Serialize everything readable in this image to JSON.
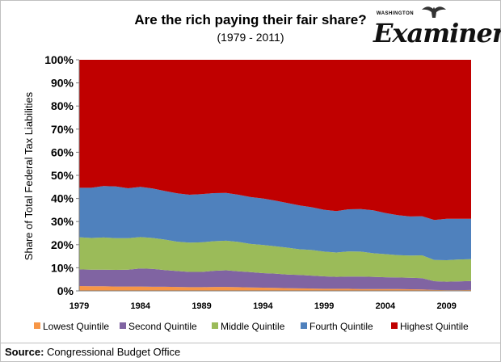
{
  "title": "Are the rich paying their fair share?",
  "subtitle": "(1979 - 2011)",
  "logo": {
    "top_text": "WASHINGTON",
    "word": "Examiner"
  },
  "source_label": "Source:",
  "source_text": "Congressional Budget Office",
  "chart_data": {
    "type": "area",
    "stacked": true,
    "title": "Are the rich paying their fair share?",
    "subtitle": "(1979 - 2011)",
    "ylabel": "Share of Total Federal Tax Liabilities",
    "xlabel": "",
    "ylim": [
      0,
      100
    ],
    "yticks": [
      "0%",
      "10%",
      "20%",
      "30%",
      "40%",
      "50%",
      "60%",
      "70%",
      "80%",
      "90%",
      "100%"
    ],
    "xticks": [
      "1979",
      "1984",
      "1989",
      "1994",
      "1999",
      "2004",
      "2009"
    ],
    "grid": false,
    "legend": "bottom",
    "x": [
      1979,
      1980,
      1981,
      1982,
      1983,
      1984,
      1985,
      1986,
      1987,
      1988,
      1989,
      1990,
      1991,
      1992,
      1993,
      1994,
      1995,
      1996,
      1997,
      1998,
      1999,
      2000,
      2001,
      2002,
      2003,
      2004,
      2005,
      2006,
      2007,
      2008,
      2009,
      2010,
      2011
    ],
    "series": [
      {
        "name": "Lowest Quintile",
        "color": "#f79646",
        "values": [
          2.1,
          2.0,
          2.0,
          1.9,
          1.9,
          1.9,
          1.8,
          1.8,
          1.7,
          1.6,
          1.6,
          1.7,
          1.7,
          1.6,
          1.5,
          1.4,
          1.3,
          1.2,
          1.1,
          1.0,
          0.9,
          0.9,
          0.9,
          0.8,
          0.8,
          0.8,
          0.8,
          0.7,
          0.6,
          0.4,
          0.3,
          0.3,
          0.4
        ]
      },
      {
        "name": "Second Quintile",
        "color": "#8064a2",
        "values": [
          7.2,
          7.2,
          7.2,
          7.2,
          7.3,
          7.8,
          7.7,
          7.2,
          6.9,
          6.6,
          6.6,
          7.0,
          7.2,
          6.9,
          6.6,
          6.3,
          6.2,
          5.9,
          5.8,
          5.6,
          5.4,
          5.2,
          5.3,
          5.4,
          5.3,
          5.1,
          5.0,
          5.0,
          4.9,
          3.8,
          3.7,
          3.8,
          3.9
        ]
      },
      {
        "name": "Middle Quintile",
        "color": "#9bbb59",
        "values": [
          13.9,
          13.7,
          13.9,
          13.7,
          13.6,
          13.6,
          13.4,
          13.2,
          12.7,
          12.7,
          12.8,
          12.8,
          12.8,
          12.7,
          12.2,
          12.2,
          11.8,
          11.6,
          11.1,
          11.1,
          10.7,
          10.5,
          10.9,
          10.8,
          10.2,
          10.0,
          9.7,
          9.6,
          9.9,
          9.2,
          9.3,
          9.5,
          9.4
        ]
      },
      {
        "name": "Fourth Quintile",
        "color": "#4f81bd",
        "values": [
          21.4,
          21.7,
          22.3,
          22.4,
          21.6,
          21.7,
          21.4,
          21.0,
          20.9,
          20.7,
          20.9,
          20.8,
          20.7,
          20.4,
          20.3,
          20.1,
          19.8,
          19.3,
          19.0,
          18.5,
          18.1,
          17.9,
          18.2,
          18.4,
          18.6,
          17.8,
          17.3,
          16.9,
          16.9,
          17.3,
          17.9,
          17.6,
          17.5
        ]
      },
      {
        "name": "Highest Quintile",
        "color": "#c00000",
        "values": [
          55.4,
          55.4,
          54.6,
          54.8,
          55.6,
          55.0,
          55.7,
          56.8,
          57.8,
          58.4,
          58.1,
          57.7,
          57.6,
          58.4,
          59.4,
          60.0,
          60.9,
          62.0,
          63.0,
          63.8,
          64.9,
          65.5,
          64.7,
          64.6,
          65.1,
          66.3,
          67.2,
          67.8,
          67.7,
          69.3,
          68.8,
          68.8,
          68.8
        ]
      }
    ]
  }
}
